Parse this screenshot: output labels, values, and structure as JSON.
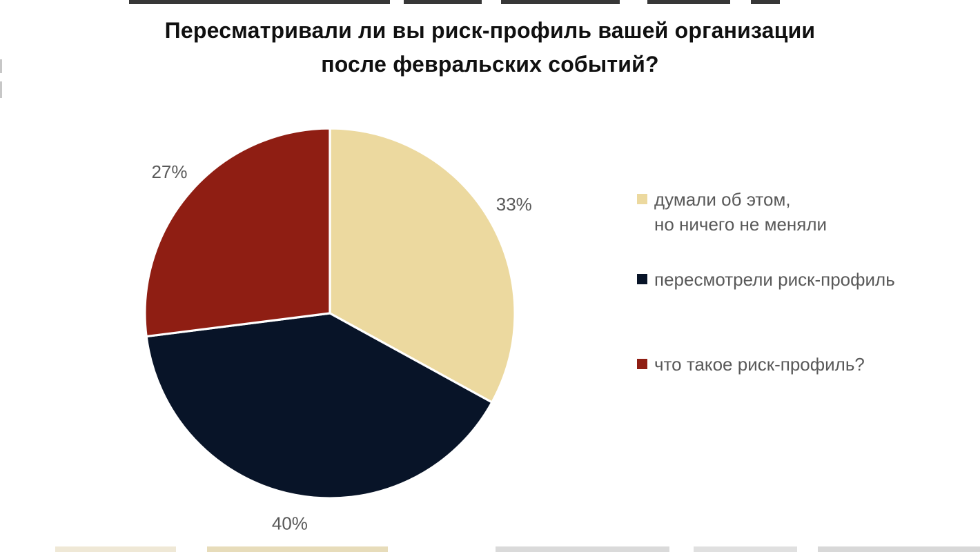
{
  "chart_data": {
    "type": "pie",
    "title": "Пересматривали ли вы риск-профиль вашей организации после февральских событий?",
    "title_lines": [
      "Пересматривали ли вы риск-профиль вашей организации",
      "после февральских событий?"
    ],
    "unit": "%",
    "direction": "clockwise",
    "start_angle_deg": 0,
    "legend_position": "right",
    "slices": [
      {
        "key": "thought-about-it",
        "label": "думали об этом,\nно ничего не меняли",
        "value": 33,
        "data_label": "33%",
        "color": "#ecd99f"
      },
      {
        "key": "revised-risk-profile",
        "label": "пересмотрели риск-профиль",
        "value": 40,
        "data_label": "40%",
        "color": "#081428"
      },
      {
        "key": "what-is-risk-profile",
        "label": "что такое риск-профиль?",
        "value": 27,
        "data_label": "27%",
        "color": "#8f1e13"
      }
    ],
    "colors": {
      "title": "#101010",
      "labels": "#595959",
      "background": "#ffffff",
      "slice_border": "#ffffff"
    }
  }
}
